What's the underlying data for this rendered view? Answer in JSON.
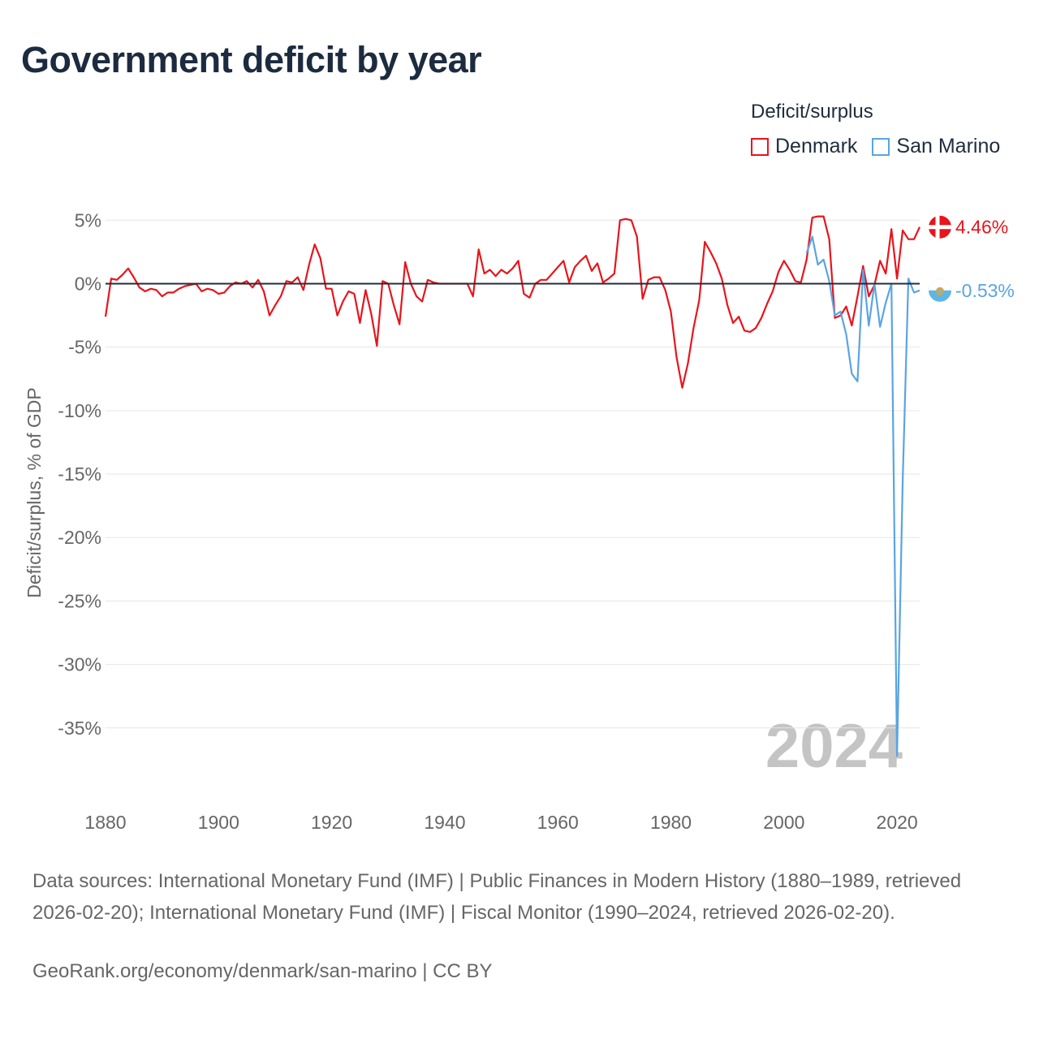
{
  "title": "Government deficit by year",
  "legend": {
    "title": "Deficit/surplus",
    "items": [
      {
        "name": "Denmark",
        "color": "#e8141c"
      },
      {
        "name": "San Marino",
        "color": "#5aa4e3"
      }
    ]
  },
  "year_watermark": "2024",
  "footer": {
    "sources": "Data sources: International Monetary Fund (IMF) | Public Finances in Modern History (1880–1989, retrieved 2026-02-20); International Monetary Fund (IMF) | Fiscal Monitor (1990–2024, retrieved 2026-02-20).",
    "credit": "GeoRank.org/economy/denmark/san-marino | CC BY"
  },
  "chart_data": {
    "type": "line",
    "title": "Government deficit by year",
    "xlabel": "",
    "ylabel": "Deficit/surplus, % of GDP",
    "xlim": [
      1880,
      2024
    ],
    "ylim": [
      -40,
      7
    ],
    "x_ticks": [
      1880,
      1900,
      1920,
      1940,
      1960,
      1980,
      2000,
      2020
    ],
    "y_ticks": [
      5,
      0,
      -5,
      -10,
      -15,
      -20,
      -25,
      -30,
      -35
    ],
    "y_tick_labels": [
      "5%",
      "0%",
      "-5%",
      "-10%",
      "-15%",
      "-20%",
      "-25%",
      "-30%",
      "-35%"
    ],
    "grid": true,
    "zero_line": true,
    "series": [
      {
        "name": "Denmark",
        "color": "#e8141c",
        "end_label": "4.46%",
        "points": [
          [
            1880,
            -2.6
          ],
          [
            1881,
            0.4
          ],
          [
            1882,
            0.3
          ],
          [
            1883,
            0.7
          ],
          [
            1884,
            1.2
          ],
          [
            1885,
            0.5
          ],
          [
            1886,
            -0.3
          ],
          [
            1887,
            -0.6
          ],
          [
            1888,
            -0.4
          ],
          [
            1889,
            -0.5
          ],
          [
            1890,
            -1.0
          ],
          [
            1891,
            -0.7
          ],
          [
            1892,
            -0.7
          ],
          [
            1893,
            -0.4
          ],
          [
            1894,
            -0.2
          ],
          [
            1895,
            -0.1
          ],
          [
            1896,
            0.0
          ],
          [
            1897,
            -0.6
          ],
          [
            1898,
            -0.4
          ],
          [
            1899,
            -0.5
          ],
          [
            1900,
            -0.8
          ],
          [
            1901,
            -0.7
          ],
          [
            1902,
            -0.2
          ],
          [
            1903,
            0.1
          ],
          [
            1904,
            0.0
          ],
          [
            1905,
            0.2
          ],
          [
            1906,
            -0.3
          ],
          [
            1907,
            0.3
          ],
          [
            1908,
            -0.6
          ],
          [
            1909,
            -2.5
          ],
          [
            1910,
            -1.7
          ],
          [
            1911,
            -1.0
          ],
          [
            1912,
            0.2
          ],
          [
            1913,
            0.1
          ],
          [
            1914,
            0.5
          ],
          [
            1915,
            -0.5
          ],
          [
            1916,
            1.5
          ],
          [
            1917,
            3.1
          ],
          [
            1918,
            2.0
          ],
          [
            1919,
            -0.4
          ],
          [
            1920,
            -0.4
          ],
          [
            1921,
            -2.5
          ],
          [
            1922,
            -1.4
          ],
          [
            1923,
            -0.6
          ],
          [
            1924,
            -0.8
          ],
          [
            1925,
            -3.1
          ],
          [
            1926,
            -0.5
          ],
          [
            1927,
            -2.4
          ],
          [
            1928,
            -4.9
          ],
          [
            1929,
            0.2
          ],
          [
            1930,
            0.0
          ],
          [
            1931,
            -1.7
          ],
          [
            1932,
            -3.2
          ],
          [
            1933,
            1.7
          ],
          [
            1934,
            0.0
          ],
          [
            1935,
            -1.0
          ],
          [
            1936,
            -1.4
          ],
          [
            1937,
            0.3
          ],
          [
            1938,
            0.1
          ],
          [
            1939,
            0.0
          ],
          [
            1944,
            0.0
          ],
          [
            1945,
            -1.0
          ],
          [
            1946,
            2.7
          ],
          [
            1947,
            0.8
          ],
          [
            1948,
            1.1
          ],
          [
            1949,
            0.6
          ],
          [
            1950,
            1.1
          ],
          [
            1951,
            0.8
          ],
          [
            1952,
            1.2
          ],
          [
            1953,
            1.8
          ],
          [
            1954,
            -0.8
          ],
          [
            1955,
            -1.1
          ],
          [
            1956,
            0.0
          ],
          [
            1957,
            0.3
          ],
          [
            1958,
            0.3
          ],
          [
            1959,
            0.8
          ],
          [
            1960,
            1.3
          ],
          [
            1961,
            1.8
          ],
          [
            1962,
            0.1
          ],
          [
            1963,
            1.3
          ],
          [
            1964,
            1.8
          ],
          [
            1965,
            2.2
          ],
          [
            1966,
            1.0
          ],
          [
            1967,
            1.6
          ],
          [
            1968,
            0.1
          ],
          [
            1969,
            0.4
          ],
          [
            1970,
            0.8
          ],
          [
            1971,
            5.0
          ],
          [
            1972,
            5.1
          ],
          [
            1973,
            5.0
          ],
          [
            1974,
            3.7
          ],
          [
            1975,
            -1.2
          ],
          [
            1976,
            0.3
          ],
          [
            1977,
            0.5
          ],
          [
            1978,
            0.5
          ],
          [
            1979,
            -0.5
          ],
          [
            1980,
            -2.2
          ],
          [
            1981,
            -5.8
          ],
          [
            1982,
            -8.2
          ],
          [
            1983,
            -6.3
          ],
          [
            1984,
            -3.5
          ],
          [
            1985,
            -1.3
          ],
          [
            1986,
            3.3
          ],
          [
            1987,
            2.5
          ],
          [
            1988,
            1.6
          ],
          [
            1989,
            0.4
          ],
          [
            1990,
            -1.7
          ],
          [
            1991,
            -3.1
          ],
          [
            1992,
            -2.6
          ],
          [
            1993,
            -3.7
          ],
          [
            1994,
            -3.8
          ],
          [
            1995,
            -3.5
          ],
          [
            1996,
            -2.7
          ],
          [
            1997,
            -1.6
          ],
          [
            1998,
            -0.6
          ],
          [
            1999,
            0.9
          ],
          [
            2000,
            1.8
          ],
          [
            2001,
            1.1
          ],
          [
            2002,
            0.2
          ],
          [
            2003,
            0.1
          ],
          [
            2004,
            1.9
          ],
          [
            2005,
            5.2
          ],
          [
            2006,
            5.3
          ],
          [
            2007,
            5.3
          ],
          [
            2008,
            3.5
          ],
          [
            2009,
            -2.7
          ],
          [
            2010,
            -2.5
          ],
          [
            2011,
            -1.8
          ],
          [
            2012,
            -3.3
          ],
          [
            2013,
            -1.0
          ],
          [
            2014,
            1.4
          ],
          [
            2015,
            -1.0
          ],
          [
            2016,
            -0.1
          ],
          [
            2017,
            1.8
          ],
          [
            2018,
            0.8
          ],
          [
            2019,
            4.3
          ],
          [
            2020,
            0.4
          ],
          [
            2021,
            4.2
          ],
          [
            2022,
            3.5
          ],
          [
            2023,
            3.5
          ],
          [
            2024,
            4.46
          ]
        ]
      },
      {
        "name": "San Marino",
        "color": "#5aa4e3",
        "end_label": "-0.53%",
        "points": [
          [
            2004,
            2.4
          ],
          [
            2005,
            3.7
          ],
          [
            2006,
            1.5
          ],
          [
            2007,
            1.9
          ],
          [
            2008,
            0.2
          ],
          [
            2009,
            -2.5
          ],
          [
            2010,
            -2.2
          ],
          [
            2011,
            -4.0
          ],
          [
            2012,
            -7.1
          ],
          [
            2013,
            -7.7
          ],
          [
            2014,
            1.1
          ],
          [
            2015,
            -3.3
          ],
          [
            2016,
            0.0
          ],
          [
            2017,
            -3.4
          ],
          [
            2018,
            -1.5
          ],
          [
            2019,
            0.0
          ],
          [
            2020,
            -37.2
          ],
          [
            2021,
            -15.5
          ],
          [
            2022,
            0.4
          ],
          [
            2023,
            -0.7
          ],
          [
            2024,
            -0.53
          ]
        ]
      }
    ]
  }
}
